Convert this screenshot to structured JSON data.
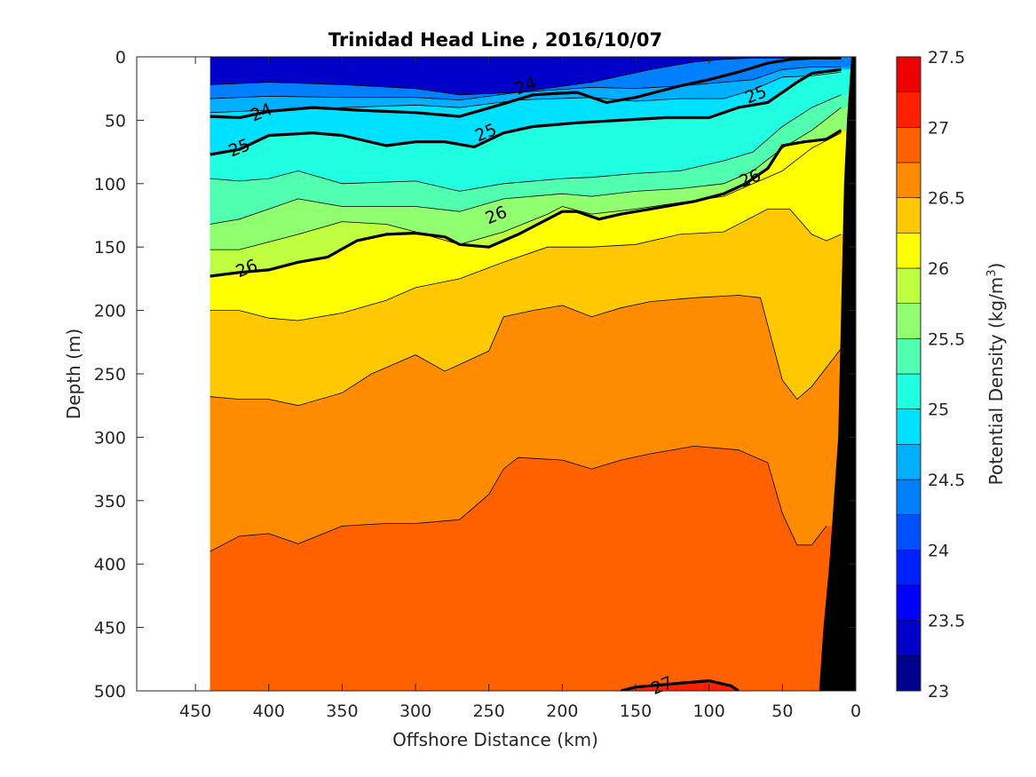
{
  "chart_data": {
    "type": "heatmap",
    "title": "Trinidad Head Line , 2016/10/07",
    "xlabel": "Offshore Distance (km)",
    "ylabel": "Depth (m)",
    "xlim": [
      490,
      0
    ],
    "ylim": [
      0,
      500
    ],
    "x_ticks": [
      "450",
      "400",
      "350",
      "300",
      "250",
      "200",
      "150",
      "100",
      "50",
      "0"
    ],
    "x_tick_values": [
      450,
      400,
      350,
      300,
      250,
      200,
      150,
      100,
      50,
      0
    ],
    "y_ticks": [
      "0",
      "50",
      "100",
      "150",
      "200",
      "250",
      "300",
      "350",
      "400",
      "450",
      "500"
    ],
    "y_tick_values": [
      0,
      50,
      100,
      150,
      200,
      250,
      300,
      350,
      400,
      450,
      500
    ],
    "colorbar": {
      "label_prefix": "Potential Density (kg/m",
      "label_exponent": "3",
      "label_suffix": ")",
      "range": [
        23,
        27.5
      ],
      "tick_labels": [
        "23",
        "23.5",
        "24",
        "24.5",
        "25",
        "25.5",
        "26",
        "26.5",
        "27",
        "27.5"
      ],
      "tick_values": [
        23,
        23.5,
        24,
        24.5,
        25,
        25.5,
        26,
        26.5,
        27,
        27.5
      ],
      "levels": [
        23,
        23.25,
        23.5,
        23.75,
        24,
        24.25,
        24.5,
        24.75,
        25,
        25.25,
        25.5,
        25.75,
        26,
        26.25,
        26.5,
        26.75,
        27,
        27.25,
        27.5
      ],
      "colors": [
        "#00008f",
        "#0000c8",
        "#0000ff",
        "#0020ff",
        "#0050ff",
        "#0080ff",
        "#00b0ff",
        "#00e0ff",
        "#20ffdf",
        "#50ffaf",
        "#90ff70",
        "#c0ff40",
        "#ffff00",
        "#ffc800",
        "#ff8c00",
        "#ff6000",
        "#ff2000",
        "#ee0000",
        "#b00000"
      ]
    },
    "data_extent": {
      "x_min": 10,
      "x_max": 440,
      "depth_min": 0,
      "depth_max": 500
    },
    "contour_lines": [
      {
        "level": 24.25,
        "points": [
          [
            440,
            22
          ],
          [
            400,
            20
          ],
          [
            350,
            22
          ],
          [
            300,
            25
          ],
          [
            270,
            30
          ],
          [
            230,
            28
          ],
          [
            180,
            20
          ],
          [
            140,
            10
          ],
          [
            110,
            4
          ],
          [
            90,
            2
          ],
          [
            70,
            1
          ],
          [
            50,
            1
          ],
          [
            30,
            0
          ],
          [
            10,
            0
          ]
        ]
      },
      {
        "level": 24.5,
        "points": [
          [
            440,
            33
          ],
          [
            400,
            31
          ],
          [
            350,
            32
          ],
          [
            300,
            32
          ],
          [
            270,
            34
          ],
          [
            230,
            28
          ],
          [
            180,
            24
          ],
          [
            150,
            25
          ],
          [
            120,
            23
          ],
          [
            90,
            20
          ],
          [
            70,
            18
          ],
          [
            50,
            10
          ],
          [
            30,
            8
          ],
          [
            10,
            8
          ]
        ]
      },
      {
        "level": 24.75,
        "points": [
          [
            440,
            44
          ],
          [
            400,
            42
          ],
          [
            350,
            40
          ],
          [
            300,
            38
          ],
          [
            270,
            40
          ],
          [
            230,
            34
          ],
          [
            180,
            32
          ],
          [
            150,
            35
          ],
          [
            120,
            33
          ],
          [
            90,
            33
          ],
          [
            70,
            26
          ],
          [
            50,
            16
          ],
          [
            30,
            15
          ],
          [
            10,
            12
          ]
        ]
      },
      {
        "level": 25.25,
        "points": [
          [
            440,
            96
          ],
          [
            420,
            98
          ],
          [
            400,
            96
          ],
          [
            380,
            90
          ],
          [
            350,
            100
          ],
          [
            300,
            98
          ],
          [
            270,
            106
          ],
          [
            240,
            100
          ],
          [
            200,
            96
          ],
          [
            180,
            95
          ],
          [
            150,
            92
          ],
          [
            120,
            90
          ],
          [
            90,
            82
          ],
          [
            70,
            75
          ],
          [
            50,
            55
          ],
          [
            30,
            40
          ],
          [
            10,
            30
          ]
        ]
      },
      {
        "level": 25.5,
        "points": [
          [
            440,
            132
          ],
          [
            420,
            128
          ],
          [
            400,
            120
          ],
          [
            380,
            112
          ],
          [
            350,
            118
          ],
          [
            300,
            118
          ],
          [
            270,
            122
          ],
          [
            240,
            112
          ],
          [
            200,
            108
          ],
          [
            180,
            110
          ],
          [
            150,
            106
          ],
          [
            120,
            104
          ],
          [
            90,
            100
          ],
          [
            70,
            90
          ],
          [
            50,
            72
          ],
          [
            30,
            58
          ],
          [
            10,
            40
          ]
        ]
      },
      {
        "level": 25.75,
        "points": [
          [
            440,
            152
          ],
          [
            420,
            152
          ],
          [
            400,
            146
          ],
          [
            380,
            140
          ],
          [
            350,
            130
          ],
          [
            320,
            132
          ],
          [
            300,
            138
          ],
          [
            270,
            148
          ],
          [
            240,
            138
          ],
          [
            210,
            124
          ],
          [
            200,
            118
          ],
          [
            180,
            124
          ],
          [
            150,
            120
          ],
          [
            120,
            115
          ],
          [
            90,
            110
          ],
          [
            70,
            100
          ],
          [
            50,
            90
          ],
          [
            30,
            72
          ],
          [
            10,
            60
          ]
        ]
      },
      {
        "level": 26.25,
        "points": [
          [
            440,
            200
          ],
          [
            420,
            200
          ],
          [
            400,
            206
          ],
          [
            380,
            208
          ],
          [
            350,
            202
          ],
          [
            320,
            192
          ],
          [
            300,
            182
          ],
          [
            270,
            175
          ],
          [
            240,
            162
          ],
          [
            210,
            150
          ],
          [
            200,
            150
          ],
          [
            180,
            150
          ],
          [
            150,
            148
          ],
          [
            120,
            140
          ],
          [
            90,
            138
          ],
          [
            60,
            120
          ],
          [
            45,
            120
          ],
          [
            30,
            140
          ],
          [
            20,
            145
          ],
          [
            10,
            140
          ]
        ]
      },
      {
        "level": 26.5,
        "points": [
          [
            440,
            268
          ],
          [
            420,
            270
          ],
          [
            400,
            270
          ],
          [
            380,
            275
          ],
          [
            350,
            265
          ],
          [
            330,
            250
          ],
          [
            300,
            235
          ],
          [
            280,
            248
          ],
          [
            250,
            232
          ],
          [
            240,
            205
          ],
          [
            220,
            200
          ],
          [
            200,
            196
          ],
          [
            180,
            205
          ],
          [
            160,
            198
          ],
          [
            140,
            193
          ],
          [
            110,
            190
          ],
          [
            80,
            188
          ],
          [
            65,
            190
          ],
          [
            50,
            255
          ],
          [
            40,
            270
          ],
          [
            30,
            260
          ],
          [
            10,
            230
          ]
        ]
      },
      {
        "level": 26.75,
        "points": [
          [
            440,
            390
          ],
          [
            420,
            378
          ],
          [
            400,
            376
          ],
          [
            380,
            384
          ],
          [
            350,
            370
          ],
          [
            320,
            368
          ],
          [
            300,
            368
          ],
          [
            270,
            365
          ],
          [
            250,
            345
          ],
          [
            240,
            325
          ],
          [
            230,
            316
          ],
          [
            200,
            318
          ],
          [
            180,
            325
          ],
          [
            160,
            318
          ],
          [
            140,
            313
          ],
          [
            110,
            307
          ],
          [
            80,
            310
          ],
          [
            60,
            320
          ],
          [
            50,
            360
          ],
          [
            40,
            385
          ],
          [
            30,
            385
          ],
          [
            20,
            370
          ]
        ]
      }
    ],
    "highlighted_contours": [
      {
        "level": 24,
        "label": "24",
        "label_positions": [
          [
            405,
            44
          ],
          [
            225,
            23
          ]
        ],
        "points": [
          [
            440,
            47
          ],
          [
            420,
            48
          ],
          [
            400,
            43
          ],
          [
            370,
            40
          ],
          [
            340,
            42
          ],
          [
            300,
            44
          ],
          [
            270,
            47
          ],
          [
            240,
            37
          ],
          [
            220,
            30
          ],
          [
            190,
            28
          ],
          [
            170,
            36
          ],
          [
            150,
            32
          ],
          [
            120,
            23
          ],
          [
            100,
            18
          ],
          [
            80,
            12
          ],
          [
            60,
            5
          ],
          [
            45,
            2
          ],
          [
            30,
            1
          ],
          [
            10,
            1
          ]
        ]
      },
      {
        "level": 25,
        "label": "25",
        "label_positions": [
          [
            420,
            72
          ],
          [
            252,
            60
          ],
          [
            68,
            30
          ]
        ],
        "points": [
          [
            440,
            77
          ],
          [
            420,
            73
          ],
          [
            400,
            62
          ],
          [
            370,
            60
          ],
          [
            350,
            62
          ],
          [
            320,
            70
          ],
          [
            300,
            67
          ],
          [
            280,
            67
          ],
          [
            260,
            71
          ],
          [
            240,
            60
          ],
          [
            220,
            55
          ],
          [
            190,
            52
          ],
          [
            160,
            50
          ],
          [
            130,
            48
          ],
          [
            100,
            48
          ],
          [
            80,
            40
          ],
          [
            60,
            36
          ],
          [
            40,
            20
          ],
          [
            30,
            13
          ],
          [
            10,
            10
          ]
        ]
      },
      {
        "level": 26,
        "label": "26",
        "label_positions": [
          [
            415,
            167
          ],
          [
            245,
            125
          ],
          [
            72,
            96
          ]
        ],
        "points": [
          [
            440,
            173
          ],
          [
            420,
            170
          ],
          [
            400,
            168
          ],
          [
            380,
            162
          ],
          [
            360,
            158
          ],
          [
            340,
            145
          ],
          [
            320,
            140
          ],
          [
            300,
            139
          ],
          [
            280,
            142
          ],
          [
            270,
            148
          ],
          [
            250,
            150
          ],
          [
            230,
            140
          ],
          [
            210,
            128
          ],
          [
            200,
            122
          ],
          [
            190,
            122
          ],
          [
            175,
            128
          ],
          [
            160,
            124
          ],
          [
            140,
            120
          ],
          [
            110,
            114
          ],
          [
            90,
            108
          ],
          [
            75,
            100
          ],
          [
            60,
            88
          ],
          [
            50,
            70
          ],
          [
            35,
            67
          ],
          [
            20,
            65
          ],
          [
            10,
            58
          ]
        ]
      },
      {
        "level": 27,
        "label": "27",
        "label_positions": [
          [
            132,
            496
          ]
        ],
        "points": [
          [
            160,
            500
          ],
          [
            150,
            497
          ],
          [
            140,
            496
          ],
          [
            120,
            494
          ],
          [
            100,
            492
          ],
          [
            85,
            496
          ],
          [
            80,
            500
          ]
        ]
      }
    ],
    "bathymetry": {
      "points": [
        [
          25,
          500
        ],
        [
          22,
          450
        ],
        [
          18,
          400
        ],
        [
          15,
          350
        ],
        [
          12,
          300
        ],
        [
          10,
          200
        ],
        [
          8,
          100
        ],
        [
          6,
          50
        ],
        [
          3,
          0
        ],
        [
          0,
          0
        ],
        [
          0,
          500
        ]
      ]
    }
  }
}
